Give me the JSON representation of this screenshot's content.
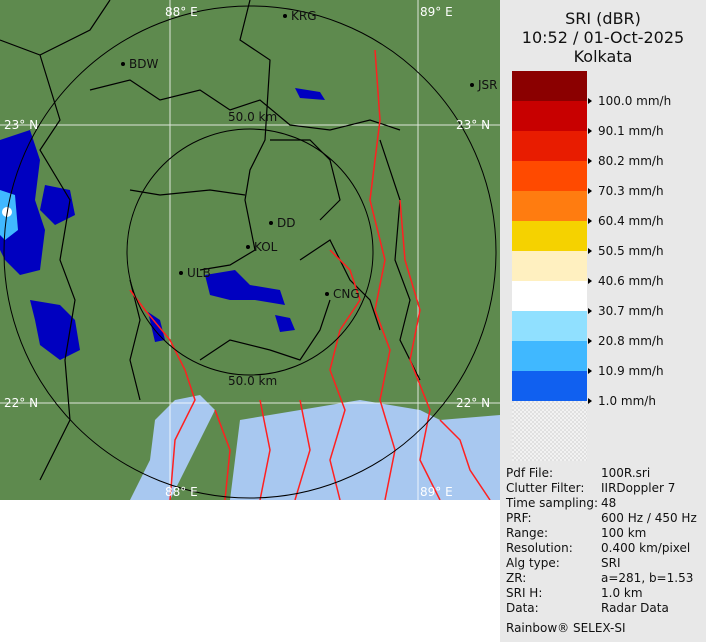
{
  "header": {
    "product": "SRI (dBR)",
    "datetime": "10:52 / 01-Oct-2025",
    "site": "Kolkata"
  },
  "legend": [
    {
      "color": "#8b0000",
      "label": ""
    },
    {
      "color": "#c80000",
      "label": "100.0 mm/h"
    },
    {
      "color": "#e81c00",
      "label": "90.1 mm/h"
    },
    {
      "color": "#ff4a00",
      "label": "80.2 mm/h"
    },
    {
      "color": "#ff7c10",
      "label": "70.3 mm/h"
    },
    {
      "color": "#f5d200",
      "label": "60.4 mm/h"
    },
    {
      "color": "#fff0c0",
      "label": "50.5 mm/h"
    },
    {
      "color": "#ffffff",
      "label": "40.6 mm/h"
    },
    {
      "color": "#90e0ff",
      "label": "30.7 mm/h"
    },
    {
      "color": "#40b8ff",
      "label": "20.8 mm/h"
    },
    {
      "color": "#1060f0",
      "label": "10.9 mm/h"
    },
    {
      "color": "#0000c0",
      "label": "1.0 mm/h"
    }
  ],
  "info": [
    {
      "key": "Pdf File:",
      "value": "100R.sri"
    },
    {
      "key": "Clutter Filter:",
      "value": "IIRDoppler 7"
    },
    {
      "key": "Time sampling:",
      "value": "48"
    },
    {
      "key": "PRF:",
      "value": "600 Hz / 450 Hz"
    },
    {
      "key": "Range:",
      "value": "100 km"
    },
    {
      "key": "Resolution:",
      "value": "0.400 km/pixel"
    },
    {
      "key": "Alg type:",
      "value": "SRI"
    },
    {
      "key": "ZR:",
      "value": "a=281, b=1.53"
    },
    {
      "key": "SRI H:",
      "value": "1.0 km"
    },
    {
      "key": "Data:",
      "value": "Radar Data"
    }
  ],
  "footer": "Rainbow® SELEX-SI",
  "map": {
    "grid": {
      "lon_top_left": "88° E",
      "lon_top_right": "89° E",
      "lon_bottom_left": "88° E",
      "lon_bottom_right": "89° E",
      "lat_top_left": "23° N",
      "lat_top_right": "23° N",
      "lat_bottom_left": "22° N",
      "lat_bottom_right": "22° N"
    },
    "ranges": {
      "inner_top": "50.0 km",
      "inner_bottom": "50.0 km"
    },
    "places": {
      "krg": "KRG",
      "bdw": "BDW",
      "jsr": "JSR",
      "dd": "DD",
      "kol": "KOL",
      "ulb": "ULB",
      "cng": "CNG"
    },
    "colors": {
      "land": "#5e8a4e",
      "sea": "#a8c8f0",
      "border": "#000000",
      "river": "#ff2020"
    }
  }
}
